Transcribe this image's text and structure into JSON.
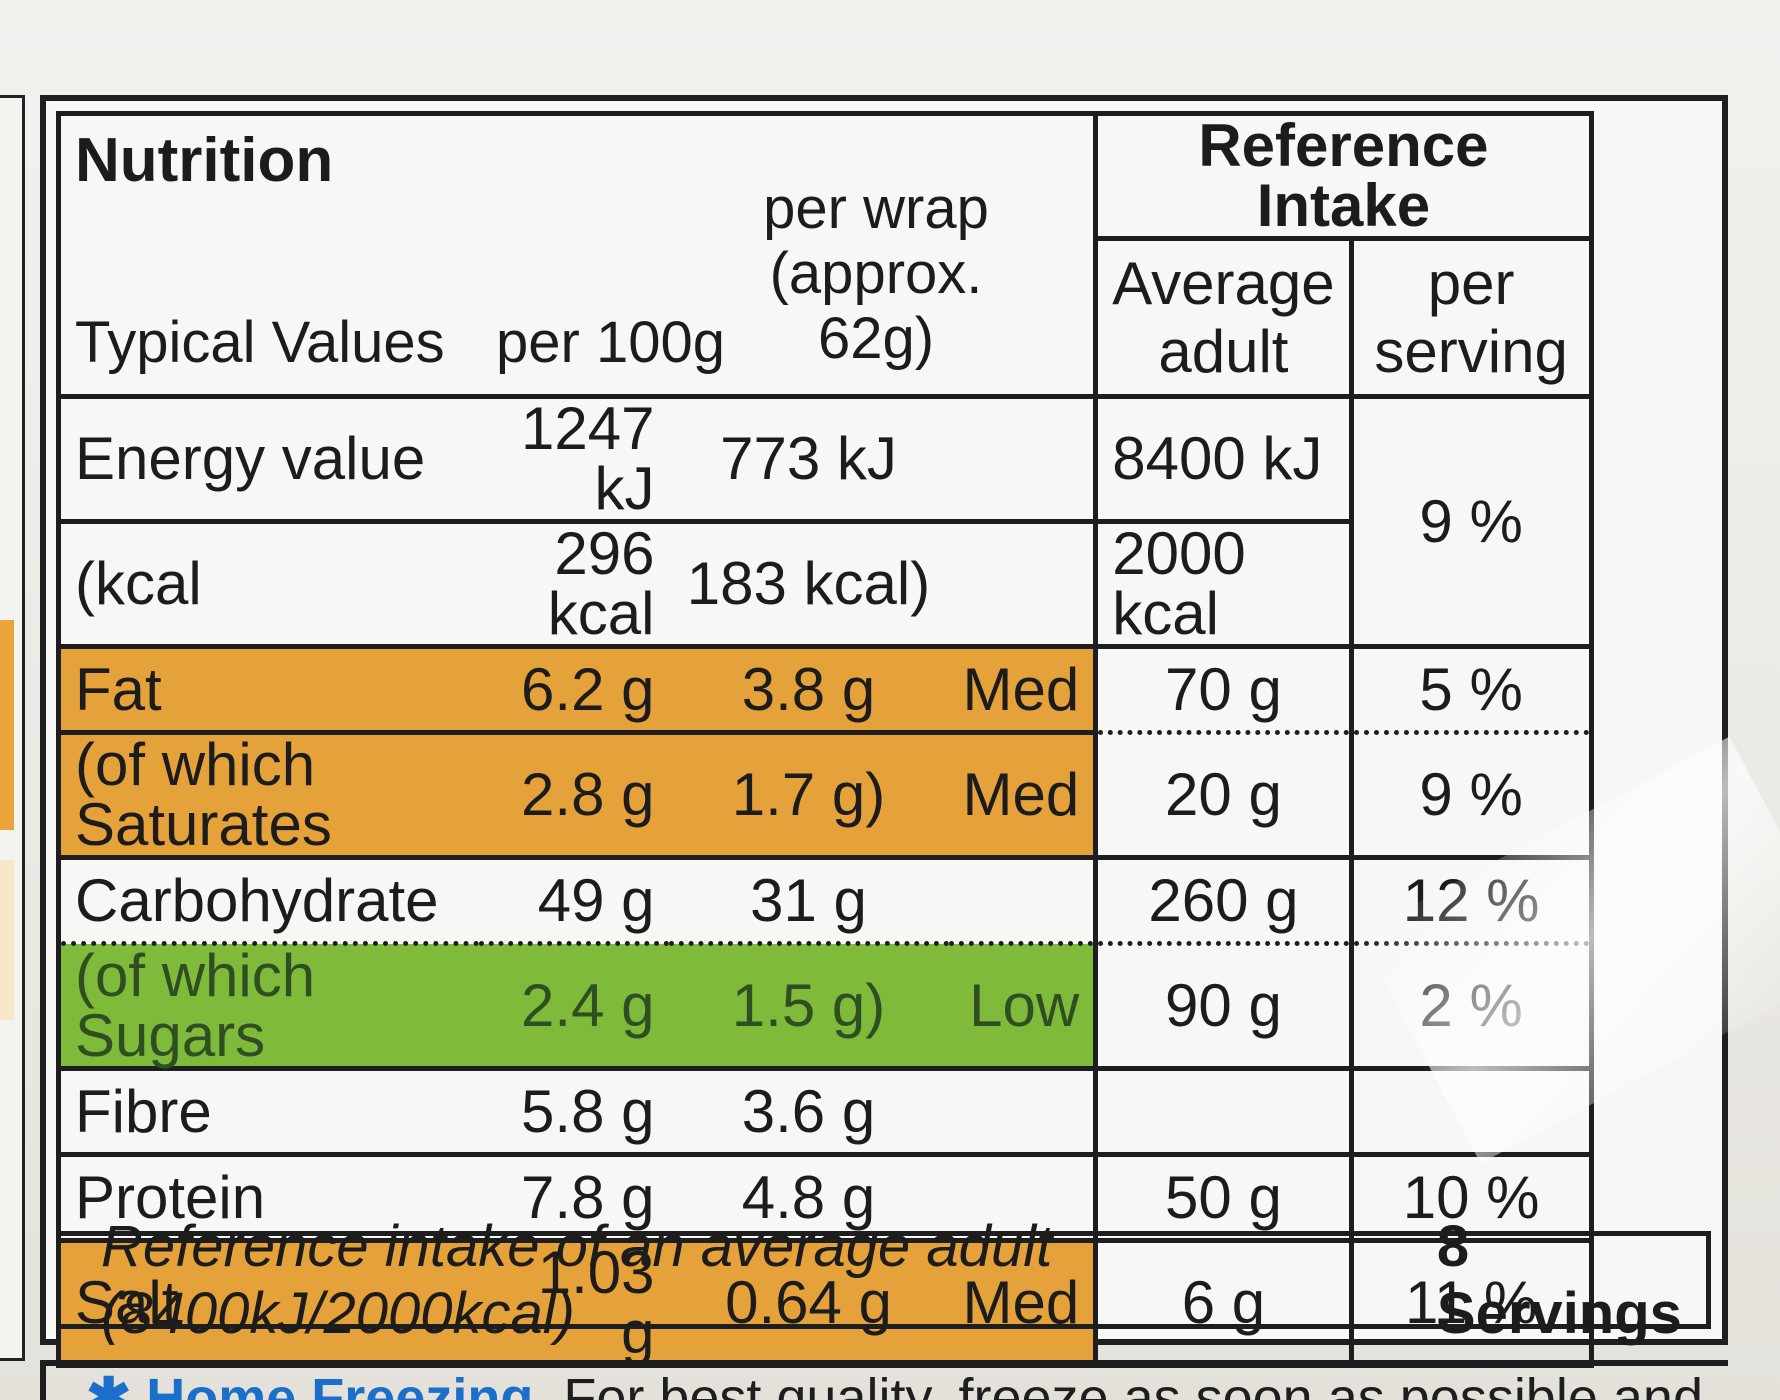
{
  "title": "Nutrition",
  "reference_intake_title": "Reference Intake",
  "headers": {
    "typical_values": "Typical Values",
    "per100g": "per 100g",
    "per_wrap_line1": "per wrap",
    "per_wrap_line2": "(approx. 62g)",
    "average_adult_line1": "Average",
    "average_adult_line2": "adult",
    "per_serving_line1": "per",
    "per_serving_line2": "serving"
  },
  "rows": [
    {
      "name": "Energy value",
      "per100g": "1247 kJ",
      "perWrap": "773 kJ",
      "level": "",
      "ri": "8400 kJ",
      "pct": "9 %"
    },
    {
      "name": "(kcal",
      "per100g": "296 kcal",
      "perWrap": "183 kcal)",
      "level": "",
      "ri": "2000 kcal",
      "pct": ""
    },
    {
      "name": "Fat",
      "per100g": "6.2 g",
      "perWrap": "3.8 g",
      "level": "Med",
      "ri": "70 g",
      "pct": "5 %"
    },
    {
      "name": "(of which Saturates",
      "per100g": "2.8 g",
      "perWrap": "1.7 g)",
      "level": "Med",
      "ri": "20 g",
      "pct": "9 %"
    },
    {
      "name": "Carbohydrate",
      "per100g": "49 g",
      "perWrap": "31 g",
      "level": "",
      "ri": "260 g",
      "pct": "12 %"
    },
    {
      "name": "(of which Sugars",
      "per100g": "2.4 g",
      "perWrap": "1.5 g)",
      "level": "Low",
      "ri": "90 g",
      "pct": "2 %"
    },
    {
      "name": "Fibre",
      "per100g": "5.8 g",
      "perWrap": "3.6 g",
      "level": "",
      "ri": "",
      "pct": ""
    },
    {
      "name": "Protein",
      "per100g": "7.8 g",
      "perWrap": "4.8 g",
      "level": "",
      "ri": "50 g",
      "pct": "10 %"
    },
    {
      "name": "Salt",
      "per100g": "1.03 g",
      "perWrap": "0.64 g",
      "level": "Med",
      "ri": "6 g",
      "pct": "11 %"
    }
  ],
  "footer": {
    "text": "Reference intake of an average adult (8400kJ/2000kcal)",
    "servings": "8 Servings"
  },
  "home_freezing": {
    "title": "Home Freezing",
    "text": "For best quality, freeze as soon as possible and"
  },
  "colors": {
    "med": "#e6a23a",
    "low": "#7fba3a"
  }
}
